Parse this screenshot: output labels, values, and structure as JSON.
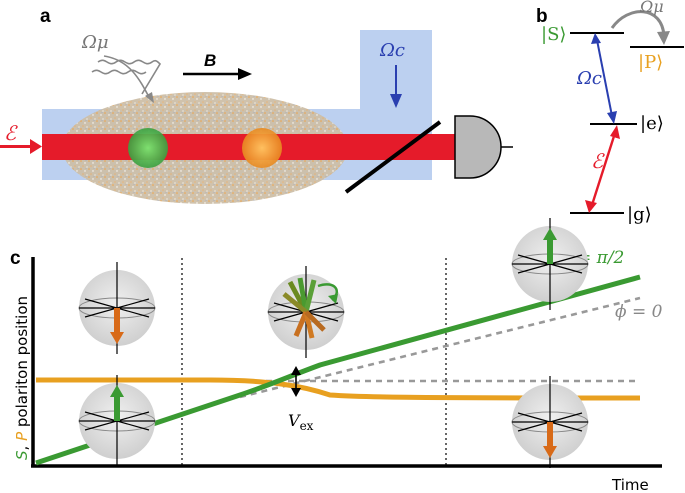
{
  "panels": {
    "a": {
      "letter": "a",
      "labels": {
        "control_field": "Ωμ",
        "magnetic_field": "B",
        "coupling_field": "Ωc",
        "probe_field": "ℰ"
      }
    },
    "b": {
      "letter": "b",
      "levels": {
        "S": "|S⟩",
        "P": "|P⟩",
        "e": "|e⟩",
        "g": "|g⟩"
      },
      "transitions": {
        "microwave": "Ωμ",
        "coupling": "Ωc",
        "probe": "ℰ"
      }
    },
    "c": {
      "letter": "c",
      "y_label": [
        "S",
        ", ",
        "P",
        " polariton position"
      ],
      "x_label": "Time",
      "phase_labels": {
        "pi_half": "ϕ = π/2",
        "zero": "ϕ = 0"
      },
      "coupling_label": "V",
      "coupling_subscript": "ex"
    }
  },
  "colors": {
    "green": "#3a9a32",
    "orange": "#e8a020",
    "red": "#e02030",
    "blue": "#2a3fb0",
    "light_blue": "#bcd0f0",
    "gray_dash": "#999999"
  }
}
